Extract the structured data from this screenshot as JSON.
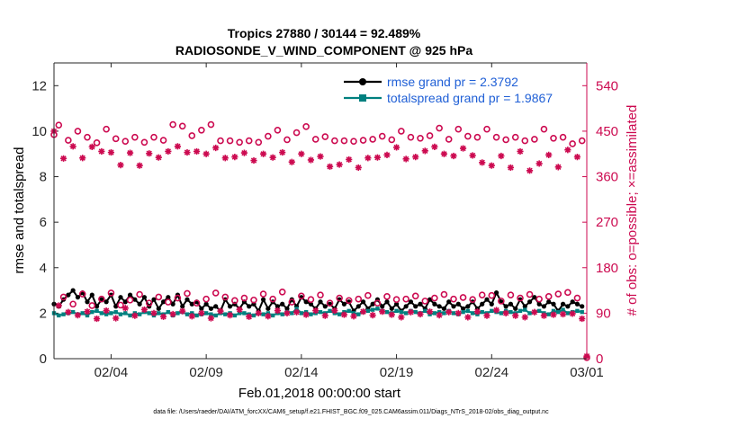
{
  "chart_data": {
    "type": "line",
    "title": "Tropics 27880 / 30144 = 92.489%",
    "subtitle": "RADIOSONDE_V_WIND_COMPONENT @ 925 hPa",
    "xlabel": "Feb.01,2018 00:00:00 start",
    "ylabel": "rmse and totalspread",
    "y2label": "# of obs: o=possible; ×=assimilated",
    "footnote": "data file: /Users/raeder/DAI/ATM_forcXX/CAM6_setup/f.e21.FHIST_BGC.f09_025.CAM6assim.011/Diags_NTrS_2018-02/obs_diag_output.nc",
    "xlim": [
      1,
      29
    ],
    "ylim": [
      0,
      13
    ],
    "y2lim": [
      0,
      585
    ],
    "xticks": [
      {
        "value": 4,
        "label": "02/04"
      },
      {
        "value": 9,
        "label": "02/09"
      },
      {
        "value": 14,
        "label": "02/14"
      },
      {
        "value": 19,
        "label": "02/19"
      },
      {
        "value": 24,
        "label": "02/24"
      },
      {
        "value": 29,
        "label": "03/01"
      }
    ],
    "yticks": [
      {
        "value": 0,
        "label": "0"
      },
      {
        "value": 2,
        "label": "2"
      },
      {
        "value": 4,
        "label": "4"
      },
      {
        "value": 6,
        "label": "6"
      },
      {
        "value": 8,
        "label": "8"
      },
      {
        "value": 10,
        "label": "10"
      },
      {
        "value": 12,
        "label": "12"
      }
    ],
    "y2ticks": [
      {
        "value": 0,
        "label": "0"
      },
      {
        "value": 90,
        "label": "90"
      },
      {
        "value": 180,
        "label": "180"
      },
      {
        "value": 270,
        "label": "270"
      },
      {
        "value": 360,
        "label": "360"
      },
      {
        "value": 450,
        "label": "450"
      },
      {
        "value": 540,
        "label": "540"
      }
    ],
    "legend_position": "top-right",
    "series": [
      {
        "name": "rmse grand pr = 2.3792",
        "axis": "left",
        "color": "#000000",
        "marker": "dot",
        "x": [
          1.0,
          1.25,
          1.5,
          1.75,
          2.0,
          2.25,
          2.5,
          2.75,
          3.0,
          3.25,
          3.5,
          3.75,
          4.0,
          4.25,
          4.5,
          4.75,
          5.0,
          5.25,
          5.5,
          5.75,
          6.0,
          6.25,
          6.5,
          6.75,
          7.0,
          7.25,
          7.5,
          7.75,
          8.0,
          8.25,
          8.5,
          8.75,
          9.0,
          9.25,
          9.5,
          9.75,
          10.0,
          10.25,
          10.5,
          10.75,
          11.0,
          11.25,
          11.5,
          11.75,
          12.0,
          12.25,
          12.5,
          12.75,
          13.0,
          13.25,
          13.5,
          13.75,
          14.0,
          14.25,
          14.5,
          14.75,
          15.0,
          15.25,
          15.5,
          15.75,
          16.0,
          16.25,
          16.5,
          16.75,
          17.0,
          17.25,
          17.5,
          17.75,
          18.0,
          18.25,
          18.5,
          18.75,
          19.0,
          19.25,
          19.5,
          19.75,
          20.0,
          20.25,
          20.5,
          20.75,
          21.0,
          21.25,
          21.5,
          21.75,
          22.0,
          22.25,
          22.5,
          22.75,
          23.0,
          23.25,
          23.5,
          23.75,
          24.0,
          24.25,
          24.5,
          24.75,
          25.0,
          25.25,
          25.5,
          25.75,
          26.0,
          26.25,
          26.5,
          26.75,
          27.0,
          27.25,
          27.5,
          27.75,
          28.0,
          28.25,
          28.5,
          28.75
        ],
        "values": [
          2.4,
          2.3,
          2.6,
          2.8,
          3.0,
          2.7,
          2.9,
          2.5,
          2.8,
          2.3,
          2.6,
          2.5,
          2.8,
          2.3,
          2.7,
          2.5,
          2.8,
          2.6,
          2.4,
          2.7,
          2.3,
          2.6,
          2.2,
          2.5,
          2.7,
          2.4,
          2.8,
          2.3,
          2.6,
          2.4,
          2.5,
          2.2,
          2.4,
          2.2,
          2.3,
          2.1,
          2.6,
          2.3,
          2.4,
          2.2,
          2.5,
          2.3,
          2.4,
          2.1,
          2.6,
          2.2,
          2.5,
          2.3,
          2.4,
          2.2,
          2.6,
          2.3,
          2.7,
          2.5,
          2.4,
          2.2,
          2.5,
          2.3,
          2.4,
          2.2,
          2.6,
          2.4,
          2.5,
          2.1,
          2.3,
          2.5,
          2.2,
          2.4,
          2.6,
          2.3,
          2.5,
          2.2,
          2.4,
          2.1,
          2.3,
          2.5,
          2.3,
          2.4,
          2.2,
          2.6,
          2.4,
          2.3,
          2.2,
          2.5,
          2.3,
          2.4,
          2.2,
          2.3,
          2.5,
          2.2,
          2.4,
          2.6,
          2.4,
          2.9,
          2.5,
          2.3,
          2.4,
          2.2,
          2.6,
          2.3,
          2.5,
          2.7,
          2.4,
          2.3,
          2.5,
          2.4,
          2.1,
          2.4,
          2.3,
          2.5,
          2.4,
          2.3
        ]
      },
      {
        "name": "totalspread grand pr = 1.9867",
        "axis": "left",
        "color": "#00807f",
        "marker": "square",
        "x": [
          1.0,
          1.25,
          1.5,
          1.75,
          2.0,
          2.25,
          2.5,
          2.75,
          3.0,
          3.25,
          3.5,
          3.75,
          4.0,
          4.25,
          4.5,
          4.75,
          5.0,
          5.25,
          5.5,
          5.75,
          6.0,
          6.25,
          6.5,
          6.75,
          7.0,
          7.25,
          7.5,
          7.75,
          8.0,
          8.25,
          8.5,
          8.75,
          9.0,
          9.25,
          9.5,
          9.75,
          10.0,
          10.25,
          10.5,
          10.75,
          11.0,
          11.25,
          11.5,
          11.75,
          12.0,
          12.25,
          12.5,
          12.75,
          13.0,
          13.25,
          13.5,
          13.75,
          14.0,
          14.25,
          14.5,
          14.75,
          15.0,
          15.25,
          15.5,
          15.75,
          16.0,
          16.25,
          16.5,
          16.75,
          17.0,
          17.25,
          17.5,
          17.75,
          18.0,
          18.25,
          18.5,
          18.75,
          19.0,
          19.25,
          19.5,
          19.75,
          20.0,
          20.25,
          20.5,
          20.75,
          21.0,
          21.25,
          21.5,
          21.75,
          22.0,
          22.25,
          22.5,
          22.75,
          23.0,
          23.25,
          23.5,
          23.75,
          24.0,
          24.25,
          24.5,
          24.75,
          25.0,
          25.25,
          25.5,
          25.75,
          26.0,
          26.25,
          26.5,
          26.75,
          27.0,
          27.25,
          27.5,
          27.75,
          28.0,
          28.25,
          28.5,
          28.75
        ],
        "values": [
          2.0,
          1.9,
          1.95,
          2.0,
          2.05,
          1.95,
          2.0,
          1.9,
          2.05,
          2.1,
          2.0,
          1.95,
          2.0,
          2.05,
          1.95,
          2.0,
          1.9,
          2.0,
          1.95,
          2.05,
          2.0,
          1.9,
          2.0,
          1.95,
          2.05,
          1.9,
          2.0,
          2.05,
          1.95,
          2.0,
          1.9,
          1.95,
          2.0,
          1.95,
          1.9,
          2.0,
          1.95,
          2.0,
          1.9,
          2.0,
          2.0,
          1.95,
          1.9,
          2.0,
          1.95,
          2.0,
          1.9,
          2.0,
          1.95,
          2.05,
          2.0,
          2.2,
          2.0,
          2.05,
          1.95,
          2.0,
          2.05,
          2.0,
          2.1,
          2.0,
          1.95,
          2.05,
          2.1,
          2.0,
          1.95,
          2.05,
          2.1,
          2.15,
          2.2,
          2.1,
          2.05,
          2.0,
          2.1,
          2.05,
          2.0,
          2.1,
          2.05,
          2.0,
          2.1,
          1.95,
          2.0,
          2.05,
          2.0,
          2.1,
          2.0,
          1.95,
          2.05,
          2.1,
          2.0,
          1.95,
          2.05,
          2.0,
          2.1,
          2.05,
          2.0,
          2.1,
          2.05,
          2.0,
          2.1,
          2.15,
          2.0,
          2.05,
          2.1,
          2.0,
          1.95,
          2.1,
          2.05,
          2.15,
          2.0,
          2.05,
          2.1,
          2.05
        ]
      },
      {
        "name": "possible",
        "axis": "right",
        "color": "#cc0a50",
        "marker": "circle",
        "x": [
          1.0,
          1.25,
          1.5,
          1.75,
          2.0,
          2.25,
          2.5,
          2.75,
          3.0,
          3.25,
          3.5,
          3.75,
          4.0,
          4.25,
          4.5,
          4.75,
          5.0,
          5.25,
          5.5,
          5.75,
          6.0,
          6.25,
          6.5,
          6.75,
          7.0,
          7.25,
          7.5,
          7.75,
          8.0,
          8.25,
          8.5,
          8.75,
          9.0,
          9.25,
          9.5,
          9.75,
          10.0,
          10.25,
          10.5,
          10.75,
          11.0,
          11.25,
          11.5,
          11.75,
          12.0,
          12.25,
          12.5,
          12.75,
          13.0,
          13.25,
          13.5,
          13.75,
          14.0,
          14.25,
          14.5,
          14.75,
          15.0,
          15.25,
          15.5,
          15.75,
          16.0,
          16.25,
          16.5,
          16.75,
          17.0,
          17.25,
          17.5,
          17.75,
          18.0,
          18.25,
          18.5,
          18.75,
          19.0,
          19.25,
          19.5,
          19.75,
          20.0,
          20.25,
          20.5,
          20.75,
          21.0,
          21.25,
          21.5,
          21.75,
          22.0,
          22.25,
          22.5,
          22.75,
          23.0,
          23.25,
          23.5,
          23.75,
          24.0,
          24.25,
          24.5,
          24.75,
          25.0,
          25.25,
          25.5,
          25.75,
          26.0,
          26.25,
          26.5,
          26.75,
          27.0,
          27.25,
          27.5,
          27.75,
          28.0,
          28.25,
          28.5,
          28.75,
          29.0
        ],
        "values": [
          443,
          462,
          122,
          432,
          108,
          450,
          128,
          438,
          105,
          427,
          118,
          454,
          130,
          435,
          106,
          430,
          116,
          438,
          127,
          428,
          110,
          438,
          122,
          432,
          112,
          463,
          120,
          460,
          129,
          441,
          110,
          452,
          118,
          463,
          130,
          431,
          122,
          431,
          115,
          428,
          120,
          431,
          116,
          428,
          128,
          440,
          118,
          452,
          132,
          433,
          112,
          447,
          124,
          459,
          117,
          434,
          126,
          439,
          110,
          431,
          120,
          431,
          115,
          430,
          118,
          432,
          125,
          434,
          110,
          440,
          123,
          433,
          117,
          450,
          118,
          438,
          124,
          436,
          114,
          441,
          120,
          456,
          127,
          434,
          118,
          454,
          121,
          440,
          117,
          438,
          126,
          454,
          125,
          438,
          114,
          433,
          126,
          438,
          120,
          431,
          127,
          434,
          118,
          454,
          123,
          436,
          128,
          438,
          131,
          425,
          120,
          431,
          2
        ]
      },
      {
        "name": "assimilated",
        "axis": "right",
        "color": "#cc0a50",
        "marker": "asterisk",
        "x": [
          1.0,
          1.25,
          1.5,
          1.75,
          2.0,
          2.25,
          2.5,
          2.75,
          3.0,
          3.25,
          3.5,
          3.75,
          4.0,
          4.25,
          4.5,
          4.75,
          5.0,
          5.25,
          5.5,
          5.75,
          6.0,
          6.25,
          6.5,
          6.75,
          7.0,
          7.25,
          7.5,
          7.75,
          8.0,
          8.25,
          8.5,
          8.75,
          9.0,
          9.25,
          9.5,
          9.75,
          10.0,
          10.25,
          10.5,
          10.75,
          11.0,
          11.25,
          11.5,
          11.75,
          12.0,
          12.25,
          12.5,
          12.75,
          13.0,
          13.25,
          13.5,
          13.75,
          14.0,
          14.25,
          14.5,
          14.75,
          15.0,
          15.25,
          15.5,
          15.75,
          16.0,
          16.25,
          16.5,
          16.75,
          17.0,
          17.25,
          17.5,
          17.75,
          18.0,
          18.25,
          18.5,
          18.75,
          19.0,
          19.25,
          19.5,
          19.75,
          20.0,
          20.25,
          20.5,
          20.75,
          21.0,
          21.25,
          21.5,
          21.75,
          22.0,
          22.25,
          22.5,
          22.75,
          23.0,
          23.25,
          23.5,
          23.75,
          24.0,
          24.25,
          24.5,
          24.75,
          25.0,
          25.25,
          25.5,
          25.75,
          26.0,
          26.25,
          26.5,
          26.75,
          27.0,
          27.25,
          27.5,
          27.75,
          28.0,
          28.25,
          28.5,
          28.75,
          29.0
        ],
        "values": [
          450,
          105,
          396,
          92,
          420,
          86,
          397,
          93,
          419,
          79,
          410,
          95,
          408,
          80,
          383,
          100,
          407,
          85,
          382,
          97,
          406,
          90,
          398,
          83,
          410,
          88,
          420,
          94,
          408,
          84,
          410,
          90,
          405,
          80,
          417,
          94,
          397,
          86,
          399,
          97,
          407,
          83,
          392,
          90,
          405,
          84,
          398,
          95,
          408,
          90,
          389,
          92,
          405,
          87,
          393,
          95,
          400,
          85,
          380,
          95,
          384,
          87,
          394,
          84,
          378,
          93,
          397,
          86,
          398,
          93,
          403,
          87,
          418,
          82,
          395,
          92,
          399,
          88,
          411,
          93,
          419,
          86,
          405,
          92,
          401,
          90,
          416,
          82,
          402,
          93,
          388,
          85,
          382,
          96,
          401,
          90,
          378,
          85,
          410,
          82,
          372,
          92,
          386,
          85,
          403,
          87,
          379,
          88,
          413,
          89,
          399,
          79,
          5
        ]
      }
    ]
  }
}
